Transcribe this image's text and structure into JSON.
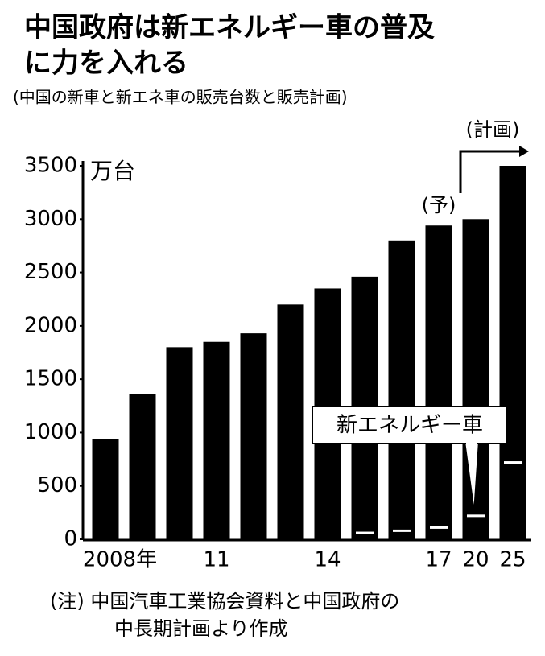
{
  "chart_data": {
    "type": "bar",
    "title_lines": [
      "中国政府は新エネルギー車の普及",
      "に力を入れる"
    ],
    "subtitle": "(中国の新車と新エネ車の販売台数と販売計画)",
    "unit": "万台",
    "categories": [
      "2008年",
      null,
      null,
      "11",
      null,
      null,
      "14",
      null,
      null,
      "17",
      "20",
      "25"
    ],
    "series": [
      {
        "color": "#000000",
        "values": [
          940,
          1360,
          1800,
          1850,
          1930,
          2200,
          2350,
          2460,
          2800,
          2940,
          3000,
          3500
        ]
      },
      {
        "name": "新エネルギー車",
        "color": "#ffffff",
        "values": [
          null,
          null,
          null,
          null,
          null,
          null,
          null,
          60,
          80,
          110,
          220,
          720
        ]
      }
    ],
    "ylim": [
      0,
      3500
    ],
    "yticks": [
      0,
      500,
      1000,
      1500,
      2000,
      2500,
      3000,
      3500
    ],
    "annotations": [
      "(予)",
      "(計画)"
    ],
    "note_lines": [
      "(注) 中国汽車工業協会資料と中国政府の",
      "中長期計画より作成"
    ]
  }
}
